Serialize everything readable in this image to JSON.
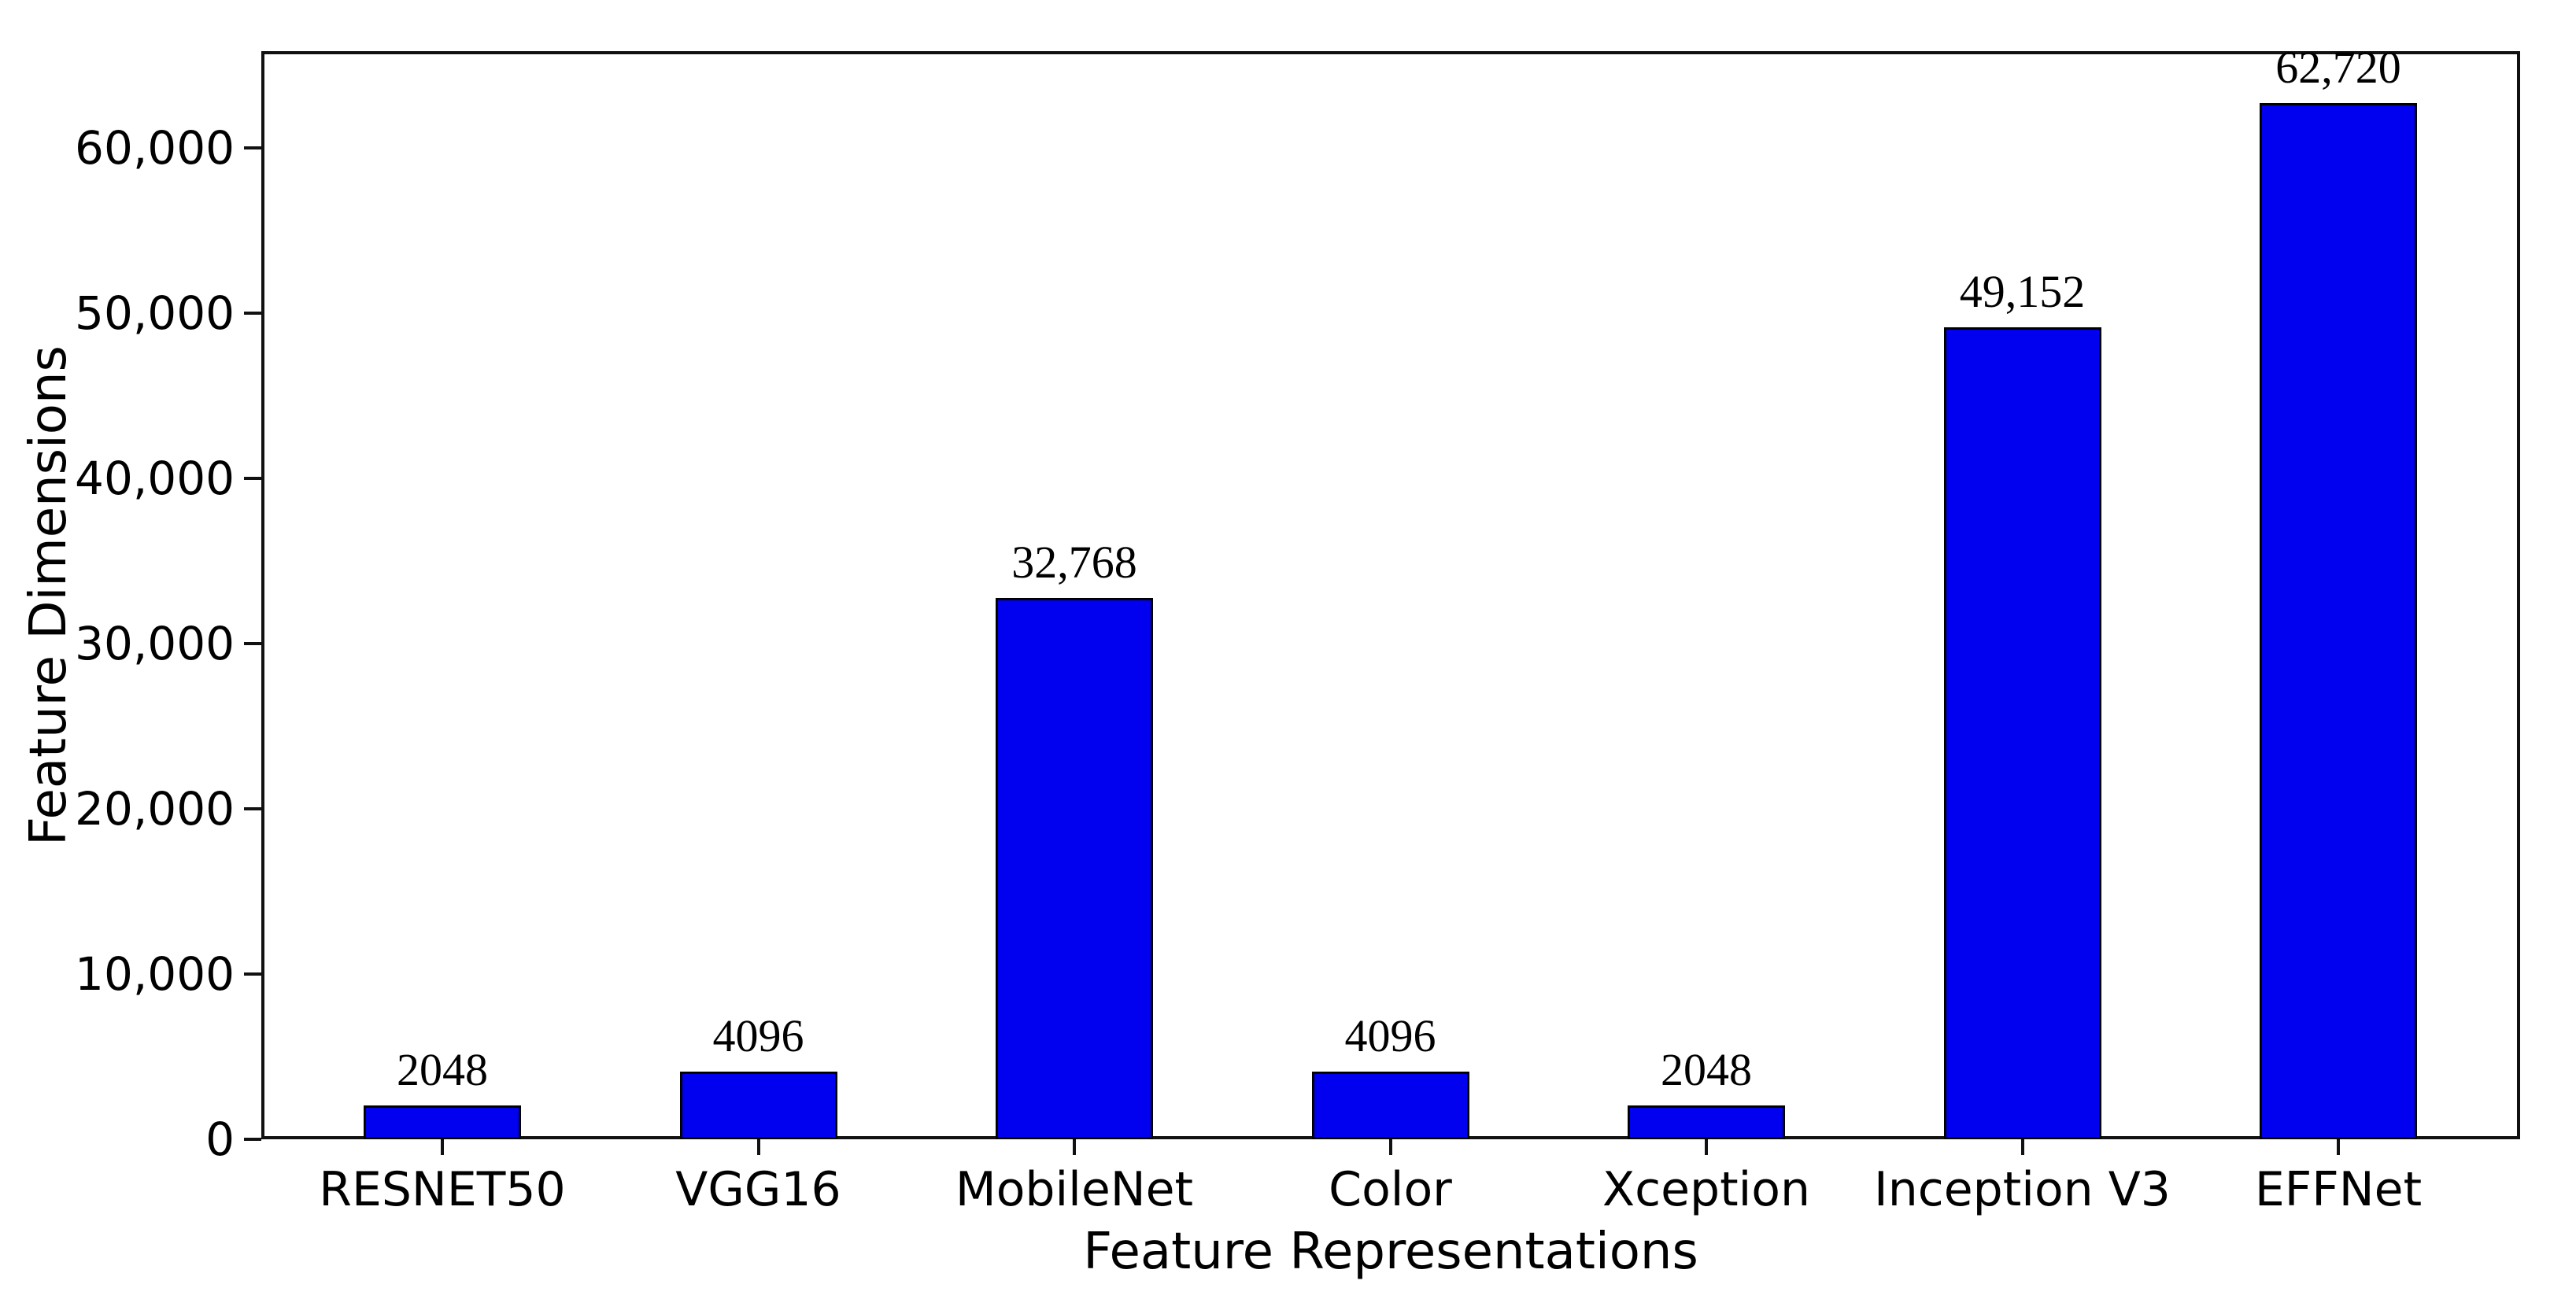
{
  "chart_data": {
    "type": "bar",
    "title": "",
    "xlabel": "Feature Representations",
    "ylabel": "Feature Dimensions",
    "categories": [
      "RESNET50",
      "VGG16",
      "MobileNet",
      "Color",
      "Xception",
      "Inception V3",
      "EFFNet"
    ],
    "values": [
      2048,
      4096,
      32768,
      4096,
      2048,
      49152,
      62720
    ],
    "bar_value_labels": [
      "2048",
      "4096",
      "32,768",
      "4096",
      "2048",
      "49,152",
      "62,720"
    ],
    "yticks": [
      0,
      10000,
      20000,
      30000,
      40000,
      50000,
      60000
    ],
    "ytick_labels": [
      "0",
      "10,000",
      "20,000",
      "30,000",
      "40,000",
      "50,000",
      "60,000"
    ],
    "ylim": [
      0,
      65857
    ],
    "grid": false,
    "legend": null,
    "bar_color": "#0101f0",
    "bar_edge_color": "#000000",
    "axis_color": "#111111",
    "text_color": "#000000",
    "background_color": "#ffffff"
  }
}
